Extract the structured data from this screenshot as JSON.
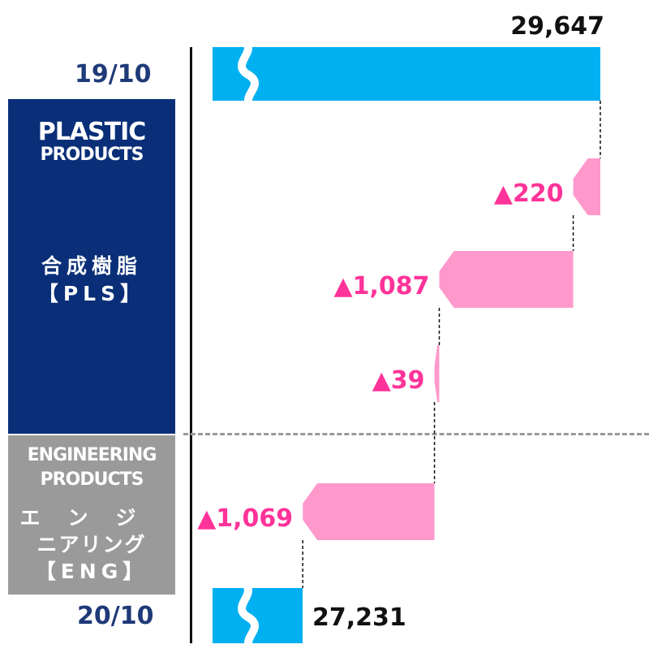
{
  "chart_data": {
    "type": "waterfall",
    "start": {
      "label": "19/10",
      "value": 29647,
      "value_label": "29,647"
    },
    "end": {
      "label": "20/10",
      "value": 27231,
      "value_label": "27,231"
    },
    "steps": [
      {
        "segment": "PLS",
        "value": -220,
        "value_label": "▲220"
      },
      {
        "segment": "PLS",
        "value": -1087,
        "value_label": "▲1,087"
      },
      {
        "segment": "PLS",
        "value": -39,
        "value_label": "▲39"
      },
      {
        "segment": "ENG",
        "value": -1069,
        "value_label": "▲1,069"
      }
    ],
    "colors": {
      "total": "#00b0f0",
      "decrease": "#ff99cc",
      "decrease_label": "#ff3399"
    }
  },
  "segments": {
    "pls": {
      "en_line1": "PLASTIC",
      "en_line2": "PRODUCTS",
      "jp_line1": "合成樹脂",
      "jp_line2": "【PLS】"
    },
    "eng": {
      "en_line1": "ENGINEERING",
      "en_line2": "PRODUCTS",
      "jp_line1": "エンジ",
      "jp_line2": "ニアリング",
      "jp_line3": "【ENG】"
    }
  }
}
